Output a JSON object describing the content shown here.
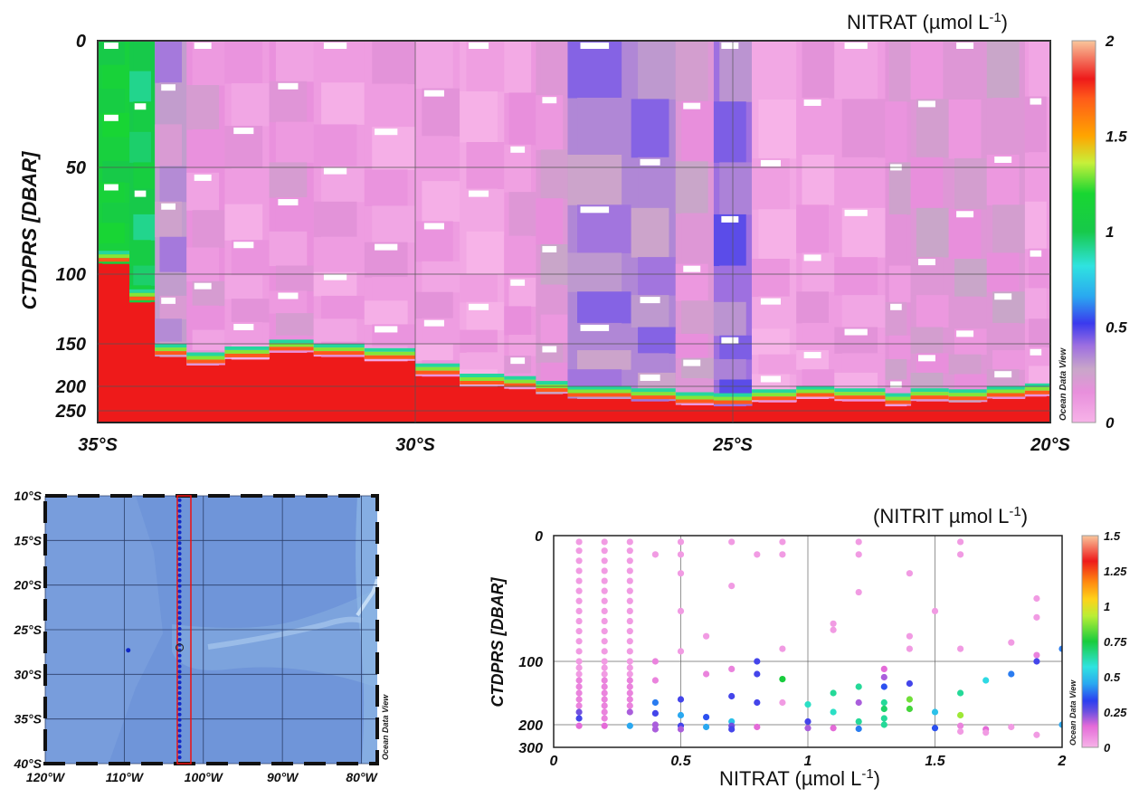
{
  "chart_data": [
    {
      "id": "section",
      "type": "heatmap",
      "title": "NITRAT (µmol L",
      "title_superscript": "-1",
      "xlabel": "",
      "ylabel": "CTDPRS [DBAR]",
      "x_ticks": [
        "35°S",
        "30°S",
        "25°S",
        "20°S"
      ],
      "x_tick_values": [
        -35,
        -30,
        -25,
        -20
      ],
      "y_ticks": [
        "0",
        "50",
        "100",
        "150",
        "200",
        "250"
      ],
      "y_tick_values": [
        0,
        50,
        100,
        150,
        200,
        250
      ],
      "y_scale": "compressed-deep",
      "colorbar_ticks": [
        "0",
        "0.5",
        "1",
        "1.5",
        "2"
      ],
      "colorbar_range": [
        0,
        2
      ],
      "watermark": "Ocean Data View",
      "background_value": 1.8,
      "bottom_depth": 260,
      "column_edges": [
        -35,
        -34.5,
        -34.1,
        -33.6,
        -33.0,
        -32.3,
        -31.6,
        -30.8,
        -30.0,
        -29.3,
        -28.6,
        -28.1,
        -27.6,
        -26.6,
        -25.9,
        -25.3,
        -24.7,
        -24.0,
        -23.4,
        -22.6,
        -22.2,
        -21.6,
        -21.0,
        -20.4,
        -20.0
      ],
      "column_bottoms": [
        95,
        120,
        165,
        175,
        168,
        160,
        165,
        170,
        188,
        200,
        205,
        215,
        225,
        230,
        238,
        240,
        232,
        225,
        230,
        240,
        230,
        232,
        225,
        220
      ],
      "columns_value": [
        1.1,
        1.0,
        0.3,
        0.15,
        0.1,
        0.15,
        0.1,
        0.1,
        0.1,
        0.05,
        0.12,
        0.2,
        0.35,
        0.35,
        0.2,
        0.4,
        0.05,
        0.1,
        0.1,
        0.18,
        0.2,
        0.2,
        0.2,
        0.1
      ]
    },
    {
      "id": "map",
      "type": "map",
      "title": "",
      "x_ticks": [
        "120°W",
        "110°W",
        "100°W",
        "90°W",
        "80°W"
      ],
      "x_tick_values": [
        -120,
        -110,
        -100,
        -90,
        -80
      ],
      "y_ticks": [
        "10°S",
        "15°S",
        "20°S",
        "25°S",
        "30°S",
        "35°S",
        "40°S"
      ],
      "y_tick_values": [
        -10,
        -15,
        -20,
        -25,
        -30,
        -35,
        -40
      ],
      "xlim": [
        -120,
        -78
      ],
      "ylim": [
        -40,
        -10
      ],
      "watermark": "Ocean Data View",
      "station_line_lon": -103,
      "station_lat_range": [
        -39.5,
        -10.5
      ],
      "station_spacing": 0.6,
      "extra_station": {
        "lon": -109.5,
        "lat": -27.3
      },
      "highlight_station": {
        "lon": -103,
        "lat": -27
      }
    },
    {
      "id": "scatter",
      "type": "scatter",
      "title": "(NITRIT µmol L",
      "title_superscript": "-1",
      "title_suffix": ")",
      "xlabel": "NITRAT (µmol L",
      "xlabel_superscript": "-1",
      "xlabel_suffix": ")",
      "ylabel": "CTDPRS [DBAR]",
      "x_ticks": [
        "0",
        "0.5",
        "1",
        "1.5",
        "2"
      ],
      "x_tick_values": [
        0,
        0.5,
        1,
        1.5,
        2
      ],
      "xlim": [
        0,
        2
      ],
      "y_ticks": [
        "0",
        "100",
        "200",
        "300"
      ],
      "y_tick_values": [
        0,
        100,
        200,
        300
      ],
      "ylim": [
        0,
        300
      ],
      "colorbar_ticks": [
        "0",
        "0.25",
        "0.5",
        "0.75",
        "1",
        "1.25",
        "1.5"
      ],
      "colorbar_range": [
        0,
        1.5
      ],
      "watermark": "Ocean Data View",
      "points": [
        [
          0.1,
          5,
          0.05
        ],
        [
          0.1,
          12,
          0.05
        ],
        [
          0.1,
          20,
          0.05
        ],
        [
          0.1,
          28,
          0.05
        ],
        [
          0.1,
          36,
          0.05
        ],
        [
          0.1,
          44,
          0.05
        ],
        [
          0.1,
          52,
          0.05
        ],
        [
          0.1,
          60,
          0.05
        ],
        [
          0.1,
          68,
          0.05
        ],
        [
          0.1,
          76,
          0.05
        ],
        [
          0.1,
          84,
          0.05
        ],
        [
          0.1,
          92,
          0.05
        ],
        [
          0.1,
          100,
          0.05
        ],
        [
          0.1,
          110,
          0.05
        ],
        [
          0.1,
          120,
          0.05
        ],
        [
          0.1,
          130,
          0.1
        ],
        [
          0.1,
          140,
          0.1
        ],
        [
          0.1,
          150,
          0.1
        ],
        [
          0.1,
          160,
          0.1
        ],
        [
          0.1,
          170,
          0.1
        ],
        [
          0.1,
          180,
          0.25
        ],
        [
          0.1,
          190,
          0.3
        ],
        [
          0.1,
          205,
          0.15
        ],
        [
          0.2,
          5,
          0.05
        ],
        [
          0.2,
          12,
          0.05
        ],
        [
          0.2,
          20,
          0.05
        ],
        [
          0.2,
          28,
          0.05
        ],
        [
          0.2,
          36,
          0.05
        ],
        [
          0.2,
          44,
          0.05
        ],
        [
          0.2,
          52,
          0.05
        ],
        [
          0.2,
          60,
          0.05
        ],
        [
          0.2,
          68,
          0.05
        ],
        [
          0.2,
          76,
          0.05
        ],
        [
          0.2,
          84,
          0.05
        ],
        [
          0.2,
          92,
          0.05
        ],
        [
          0.2,
          100,
          0.05
        ],
        [
          0.2,
          110,
          0.05
        ],
        [
          0.2,
          120,
          0.05
        ],
        [
          0.2,
          130,
          0.1
        ],
        [
          0.2,
          140,
          0.1
        ],
        [
          0.2,
          150,
          0.1
        ],
        [
          0.2,
          160,
          0.1
        ],
        [
          0.2,
          170,
          0.1
        ],
        [
          0.2,
          180,
          0.1
        ],
        [
          0.2,
          190,
          0.1
        ],
        [
          0.2,
          205,
          0.15
        ],
        [
          0.3,
          5,
          0.05
        ],
        [
          0.3,
          12,
          0.05
        ],
        [
          0.3,
          20,
          0.05
        ],
        [
          0.3,
          28,
          0.05
        ],
        [
          0.3,
          36,
          0.05
        ],
        [
          0.3,
          44,
          0.05
        ],
        [
          0.3,
          52,
          0.05
        ],
        [
          0.3,
          60,
          0.05
        ],
        [
          0.3,
          68,
          0.05
        ],
        [
          0.3,
          76,
          0.05
        ],
        [
          0.3,
          84,
          0.05
        ],
        [
          0.3,
          92,
          0.05
        ],
        [
          0.3,
          100,
          0.05
        ],
        [
          0.3,
          110,
          0.05
        ],
        [
          0.3,
          120,
          0.05
        ],
        [
          0.3,
          130,
          0.1
        ],
        [
          0.3,
          140,
          0.1
        ],
        [
          0.3,
          150,
          0.1
        ],
        [
          0.3,
          160,
          0.1
        ],
        [
          0.3,
          170,
          0.1
        ],
        [
          0.3,
          180,
          0.2
        ],
        [
          0.3,
          205,
          0.45
        ],
        [
          0.4,
          15,
          0.05
        ],
        [
          0.4,
          100,
          0.1
        ],
        [
          0.4,
          130,
          0.1
        ],
        [
          0.4,
          165,
          0.4
        ],
        [
          0.4,
          182,
          0.3
        ],
        [
          0.4,
          200,
          0.2
        ],
        [
          0.4,
          220,
          0.2
        ],
        [
          0.5,
          5,
          0.05
        ],
        [
          0.5,
          15,
          0.05
        ],
        [
          0.5,
          30,
          0.05
        ],
        [
          0.5,
          60,
          0.05
        ],
        [
          0.5,
          92,
          0.05
        ],
        [
          0.5,
          160,
          0.3
        ],
        [
          0.5,
          185,
          0.45
        ],
        [
          0.5,
          205,
          0.3
        ],
        [
          0.5,
          220,
          0.2
        ],
        [
          0.6,
          80,
          0.05
        ],
        [
          0.6,
          120,
          0.1
        ],
        [
          0.6,
          188,
          0.35
        ],
        [
          0.6,
          210,
          0.45
        ],
        [
          0.7,
          5,
          0.05
        ],
        [
          0.7,
          40,
          0.05
        ],
        [
          0.7,
          112,
          0.1
        ],
        [
          0.7,
          155,
          0.3
        ],
        [
          0.7,
          195,
          0.5
        ],
        [
          0.7,
          205,
          0.25
        ],
        [
          0.7,
          220,
          0.3
        ],
        [
          0.8,
          15,
          0.05
        ],
        [
          0.8,
          100,
          0.3
        ],
        [
          0.8,
          120,
          0.3
        ],
        [
          0.8,
          165,
          0.3
        ],
        [
          0.8,
          210,
          0.15
        ],
        [
          0.9,
          5,
          0.05
        ],
        [
          0.9,
          15,
          0.05
        ],
        [
          0.9,
          90,
          0.05
        ],
        [
          0.9,
          128,
          0.75
        ],
        [
          0.9,
          165,
          0.05
        ],
        [
          1.0,
          168,
          0.6
        ],
        [
          1.0,
          195,
          0.3
        ],
        [
          1.0,
          215,
          0.2
        ],
        [
          1.1,
          70,
          0.05
        ],
        [
          1.1,
          75,
          0.05
        ],
        [
          1.1,
          150,
          0.65
        ],
        [
          1.1,
          180,
          0.6
        ],
        [
          1.1,
          215,
          0.15
        ],
        [
          1.2,
          5,
          0.05
        ],
        [
          1.2,
          15,
          0.05
        ],
        [
          1.2,
          45,
          0.05
        ],
        [
          1.2,
          140,
          0.65
        ],
        [
          1.2,
          165,
          0.2
        ],
        [
          1.2,
          195,
          0.65
        ],
        [
          1.2,
          218,
          0.4
        ],
        [
          1.3,
          112,
          0.15
        ],
        [
          1.3,
          125,
          0.2
        ],
        [
          1.3,
          140,
          0.35
        ],
        [
          1.3,
          165,
          0.65
        ],
        [
          1.3,
          175,
          0.7
        ],
        [
          1.3,
          190,
          0.65
        ],
        [
          1.3,
          200,
          0.65
        ],
        [
          1.4,
          30,
          0.05
        ],
        [
          1.4,
          80,
          0.05
        ],
        [
          1.4,
          90,
          0.05
        ],
        [
          1.4,
          135,
          0.3
        ],
        [
          1.4,
          160,
          0.85
        ],
        [
          1.4,
          175,
          0.8
        ],
        [
          1.5,
          60,
          0.05
        ],
        [
          1.5,
          180,
          0.5
        ],
        [
          1.5,
          215,
          0.35
        ],
        [
          1.6,
          5,
          0.05
        ],
        [
          1.6,
          15,
          0.05
        ],
        [
          1.6,
          90,
          0.05
        ],
        [
          1.6,
          150,
          0.65
        ],
        [
          1.6,
          185,
          0.9
        ],
        [
          1.6,
          205,
          0.1
        ],
        [
          1.6,
          230,
          0.05
        ],
        [
          1.7,
          130,
          0.55
        ],
        [
          1.7,
          220,
          0.15
        ],
        [
          1.7,
          235,
          0.05
        ],
        [
          1.8,
          85,
          0.05
        ],
        [
          1.8,
          120,
          0.4
        ],
        [
          1.8,
          210,
          0.05
        ],
        [
          1.9,
          50,
          0.05
        ],
        [
          1.9,
          65,
          0.05
        ],
        [
          1.9,
          95,
          0.1
        ],
        [
          1.9,
          100,
          0.3
        ],
        [
          1.9,
          245,
          0.05
        ],
        [
          2.0,
          90,
          0.4
        ],
        [
          2.0,
          200,
          0.45
        ]
      ]
    }
  ]
}
